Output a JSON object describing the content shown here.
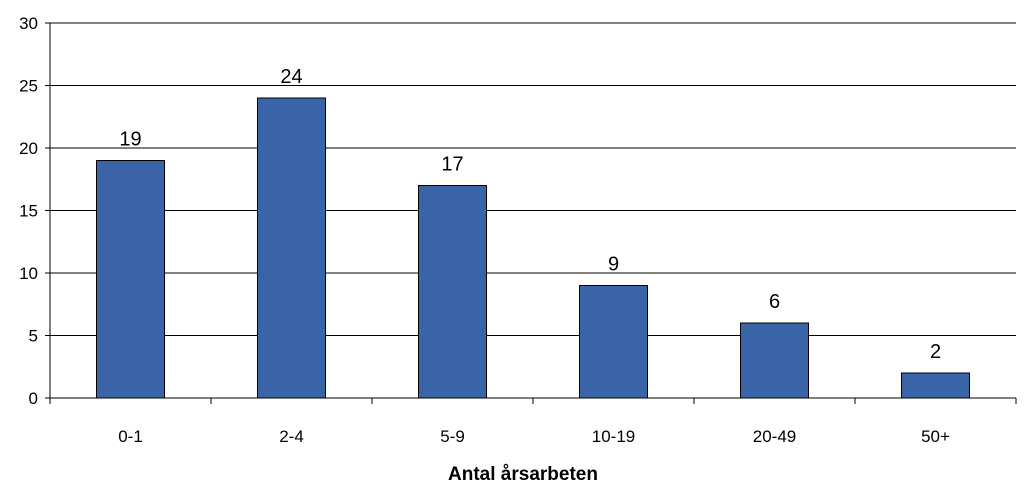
{
  "chart_data": {
    "type": "bar",
    "title": "",
    "xlabel": "Antal årsarbeten",
    "ylabel": "",
    "categories": [
      "0-1",
      "2-4",
      "5-9",
      "10-19",
      "20-49",
      "50+"
    ],
    "values": [
      19,
      24,
      17,
      9,
      6,
      2
    ],
    "ylim": [
      0,
      30
    ],
    "yticks": [
      0,
      5,
      10,
      15,
      20,
      25,
      30
    ],
    "grid": true,
    "legend": "none",
    "bar_color": "#3A64A8",
    "data_labels": true
  }
}
